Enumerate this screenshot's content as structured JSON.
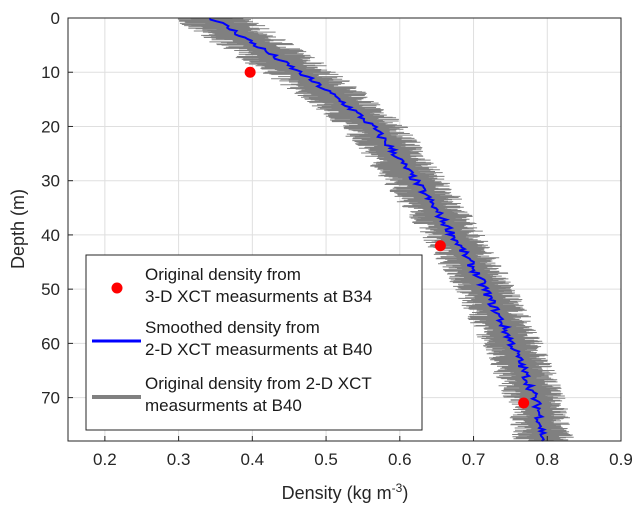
{
  "chart_data": {
    "type": "line",
    "xlabel": "Density (kg m",
    "xlabel_sup": "-3",
    "xlabel_end": ")",
    "ylabel": "Depth (m)",
    "xlim": [
      0.15,
      0.9
    ],
    "ylim": [
      78,
      0
    ],
    "y_reversed": true,
    "grid": true,
    "xticks": [
      0.2,
      0.3,
      0.4,
      0.5,
      0.6,
      0.7,
      0.8,
      0.9
    ],
    "yticks": [
      0,
      10,
      20,
      30,
      40,
      50,
      60,
      70
    ],
    "xtick_labels": [
      "0.2",
      "0.3",
      "0.4",
      "0.5",
      "0.6",
      "0.7",
      "0.8",
      "0.9"
    ],
    "ytick_labels": [
      "0",
      "10",
      "20",
      "30",
      "40",
      "50",
      "60",
      "70"
    ],
    "legend_position": "bottom-left",
    "legend": [
      {
        "line1": "Original density from",
        "line2": "3-D XCT measurments at B34",
        "marker": "dot",
        "color": "#ff0000"
      },
      {
        "line1": "Smoothed density from",
        "line2": "2-D XCT measurments at B40",
        "marker": "line",
        "color": "#0000ff"
      },
      {
        "line1": "Original density from 2-D XCT",
        "line2": "measurments at B40",
        "marker": "line",
        "color": "#808080"
      }
    ],
    "series": [
      {
        "kind": "points",
        "color": "#ff0000",
        "x": [
          0.397,
          0.655,
          0.768
        ],
        "y": [
          10,
          42,
          71
        ]
      },
      {
        "kind": "smoothed",
        "color": "#0000ff",
        "x": [
          0.345,
          0.37,
          0.405,
          0.44,
          0.475,
          0.507,
          0.537,
          0.563,
          0.588,
          0.61,
          0.632,
          0.652,
          0.672,
          0.69,
          0.708,
          0.723,
          0.738,
          0.752,
          0.765,
          0.777,
          0.788,
          0.795
        ],
        "y": [
          0,
          2,
          5,
          8,
          11,
          14,
          17,
          20,
          24,
          28,
          32,
          36,
          40,
          44,
          48,
          52,
          56,
          60,
          64,
          68,
          72,
          78
        ]
      },
      {
        "kind": "original-band",
        "color": "#808080",
        "x": [
          0.345,
          0.37,
          0.405,
          0.44,
          0.475,
          0.507,
          0.537,
          0.563,
          0.588,
          0.61,
          0.632,
          0.652,
          0.672,
          0.69,
          0.708,
          0.723,
          0.738,
          0.752,
          0.765,
          0.777,
          0.788,
          0.795
        ],
        "y": [
          0,
          2,
          5,
          8,
          11,
          14,
          17,
          20,
          24,
          28,
          32,
          36,
          40,
          44,
          48,
          52,
          56,
          60,
          64,
          68,
          72,
          78
        ],
        "half_width": [
          0.06,
          0.058,
          0.056,
          0.054,
          0.052,
          0.05,
          0.05,
          0.048,
          0.048,
          0.046,
          0.046,
          0.045,
          0.045,
          0.045,
          0.044,
          0.044,
          0.044,
          0.043,
          0.043,
          0.043,
          0.042,
          0.042
        ]
      }
    ]
  }
}
